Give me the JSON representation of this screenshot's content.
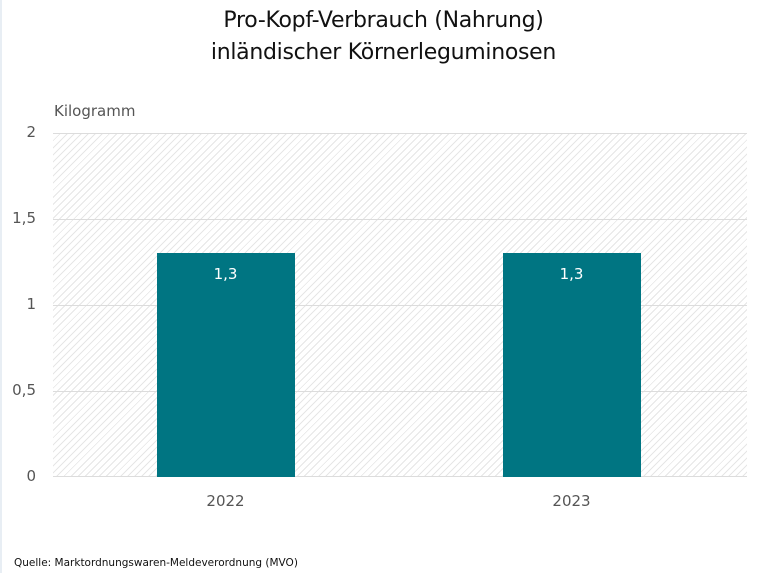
{
  "chart_data": {
    "type": "bar",
    "title": "Pro-Kopf-Verbrauch (Nahrung) inländischer Körnerleguminosen",
    "title_lines": [
      "Pro-Kopf-Verbrauch (Nahrung)",
      "inländischer Körnerleguminosen"
    ],
    "xlabel": "",
    "ylabel": "Kilogramm",
    "categories": [
      "2022",
      "2023"
    ],
    "values": [
      1.3,
      1.3
    ],
    "value_labels": [
      "1,3",
      "1,3"
    ],
    "ylim": [
      0,
      2
    ],
    "yticks": [
      0,
      0.5,
      1,
      1.5,
      2
    ],
    "ytick_labels": [
      "0",
      "0,5",
      "1",
      "1,5",
      "2"
    ],
    "grid": true,
    "legend": null,
    "bar_color": "#007582",
    "source": "Quelle: Marktordnungswaren-Meldeverordnung (MVO)"
  }
}
